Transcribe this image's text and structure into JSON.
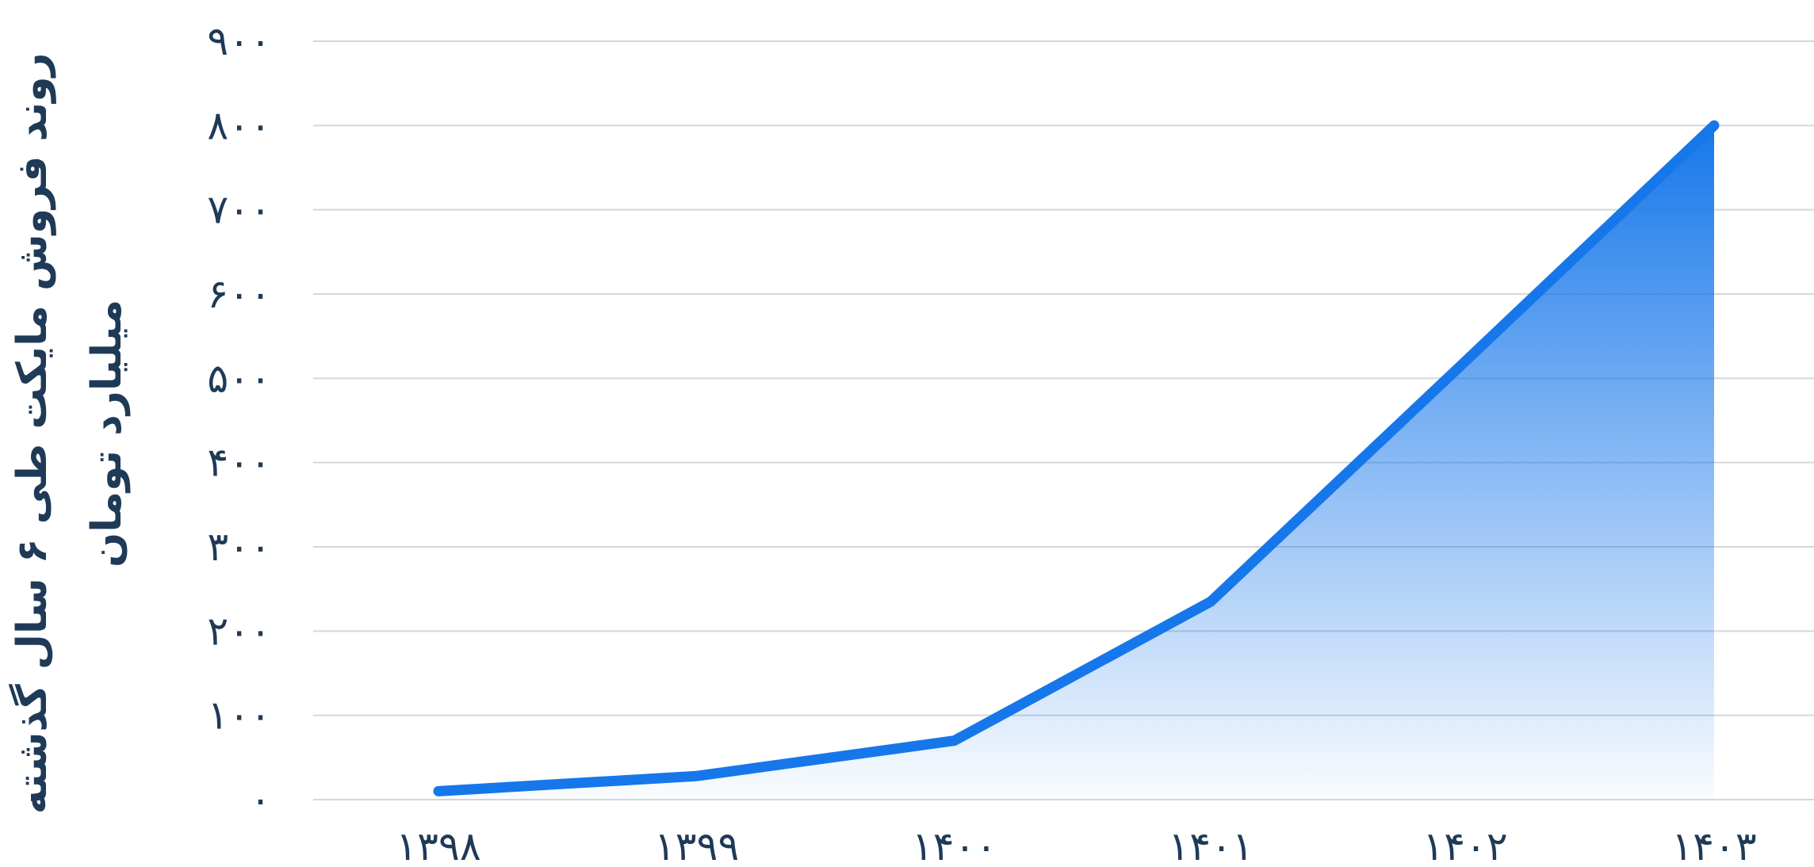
{
  "chart_data": {
    "type": "area",
    "title": "",
    "ylabel_lines": [
      "روند فروش مایکت طی ۶ سال گذشته",
      "میلیارد تومان"
    ],
    "categories": [
      "۱۳۹۸",
      "۱۳۹۹",
      "۱۴۰۰",
      "۱۴۰۱",
      "۱۴۰۲",
      "۱۴۰۳"
    ],
    "series": [
      {
        "values": [
          10,
          28,
          70,
          235,
          520,
          800
        ]
      }
    ],
    "ylim": [
      0,
      900
    ],
    "yticks": [
      0,
      100,
      200,
      300,
      400,
      500,
      600,
      700,
      800,
      900
    ],
    "ytick_labels": [
      "۰",
      "۱۰۰",
      "۲۰۰",
      "۳۰۰",
      "۴۰۰",
      "۵۰۰",
      "۶۰۰",
      "۷۰۰",
      "۸۰۰",
      "۹۰۰"
    ],
    "grid": true,
    "legend": "none",
    "colors": {
      "line": "#1677ea",
      "fill_top": "#1677ea",
      "fill_bottom": "#ffffff",
      "text": "#1f3a56",
      "grid": "#d3d7dc"
    }
  }
}
